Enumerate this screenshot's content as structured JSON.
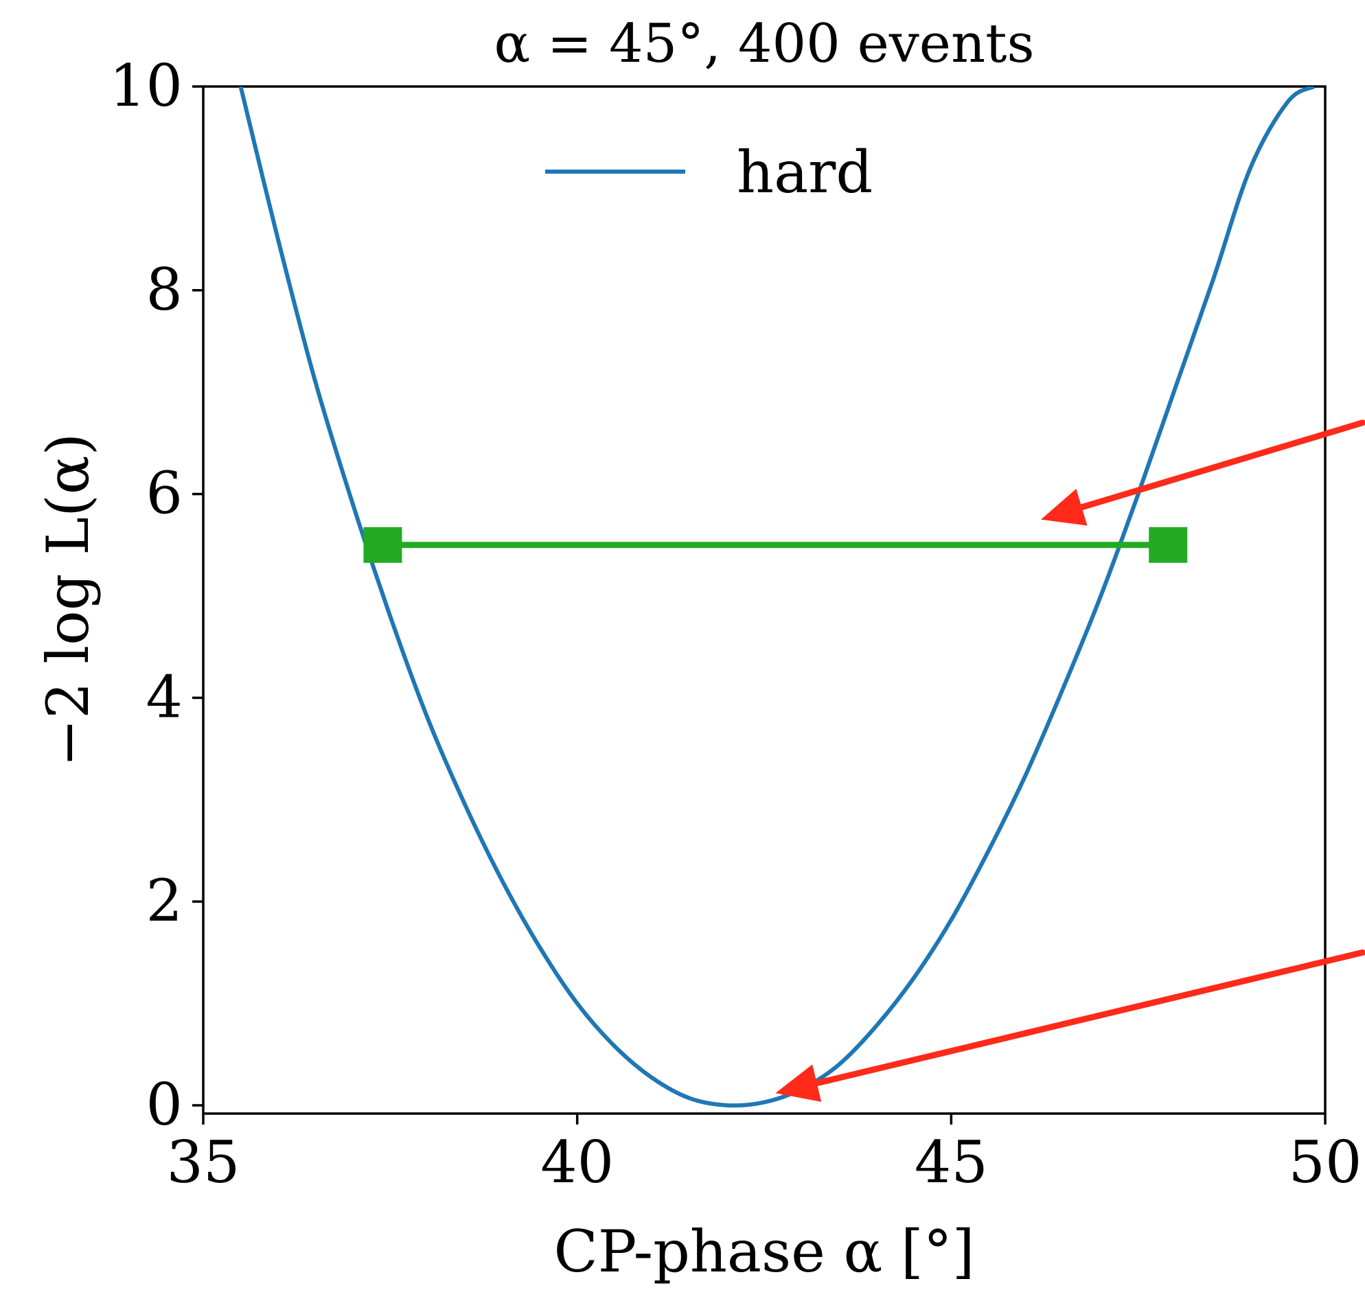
{
  "chart_data": {
    "type": "line",
    "title": "α = 45°, 400 events",
    "xlabel": "CP-phase α [°]",
    "ylabel": "−2 log L(α)",
    "xlim": [
      35,
      50
    ],
    "ylim": [
      0,
      10
    ],
    "xticks": [
      35,
      40,
      45,
      50
    ],
    "yticks": [
      0,
      2,
      4,
      6,
      8,
      10
    ],
    "grid": false,
    "legend": {
      "position": "top-center",
      "entries": [
        "hard"
      ]
    },
    "series": [
      {
        "name": "hard",
        "color": "#1f77b4",
        "x": [
          35.5,
          36.0,
          36.5,
          37.0,
          37.5,
          38.0,
          38.5,
          39.0,
          39.5,
          40.0,
          40.5,
          41.0,
          41.5,
          42.0,
          42.5,
          43.0,
          43.5,
          44.0,
          44.5,
          45.0,
          45.5,
          46.0,
          46.5,
          47.0,
          47.5,
          48.0,
          48.5,
          49.0,
          49.5,
          49.85
        ],
        "y": [
          10.0,
          8.5,
          7.1,
          5.9,
          4.8,
          3.8,
          2.95,
          2.2,
          1.55,
          1.0,
          0.58,
          0.27,
          0.07,
          0.0,
          0.03,
          0.16,
          0.4,
          0.78,
          1.25,
          1.82,
          2.5,
          3.25,
          4.1,
          5.0,
          6.0,
          7.05,
          8.1,
          9.2,
          9.85,
          10.0
        ]
      }
    ],
    "annotations": [
      {
        "type": "interval",
        "color": "#22aa22",
        "x_start": 37.4,
        "x_end": 47.9,
        "y": 5.5
      },
      {
        "type": "arrow",
        "color": "#ff2a1a",
        "from": [
          50.5,
          6.7
        ],
        "to": [
          46.2,
          5.75
        ]
      },
      {
        "type": "arrow",
        "color": "#ff2a1a",
        "from": [
          50.5,
          1.5
        ],
        "to": [
          42.65,
          0.12
        ]
      }
    ]
  }
}
